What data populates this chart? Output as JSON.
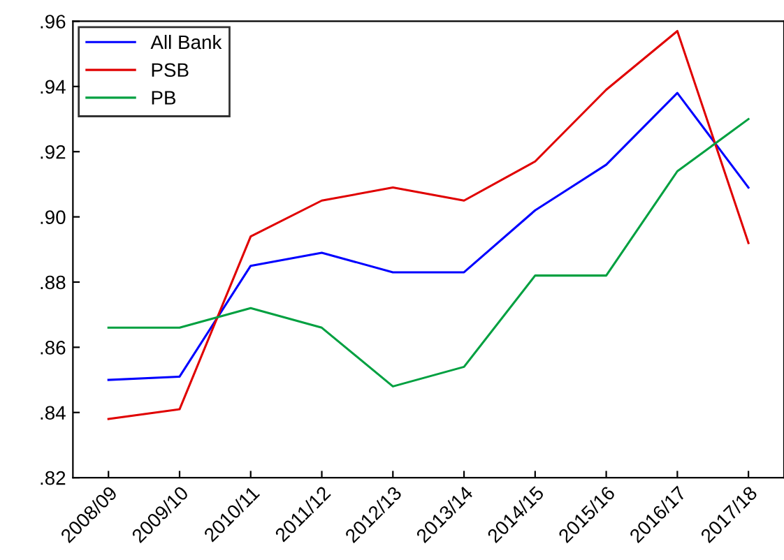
{
  "chart_data": {
    "type": "line",
    "categories": [
      "2008/09",
      "2009/10",
      "2010/11",
      "2011/12",
      "2012/13",
      "2013/14",
      "2014/15",
      "2015/16",
      "2016/17",
      "2017/18"
    ],
    "series": [
      {
        "name": "All Bank",
        "color": "#0000ff",
        "values": [
          0.85,
          0.851,
          0.885,
          0.889,
          0.883,
          0.883,
          0.902,
          0.916,
          0.938,
          0.909
        ]
      },
      {
        "name": "PSB",
        "color": "#e00000",
        "values": [
          0.838,
          0.841,
          0.894,
          0.905,
          0.909,
          0.905,
          0.917,
          0.939,
          0.957,
          0.892
        ]
      },
      {
        "name": "PB",
        "color": "#00a040",
        "values": [
          0.866,
          0.866,
          0.872,
          0.866,
          0.848,
          0.854,
          0.882,
          0.882,
          0.914,
          0.93
        ]
      }
    ],
    "ylim": [
      0.82,
      0.96
    ],
    "yticks": [
      {
        "value": 0.82,
        "label": ".82"
      },
      {
        "value": 0.84,
        "label": ".84"
      },
      {
        "value": 0.86,
        "label": ".86"
      },
      {
        "value": 0.88,
        "label": ".88"
      },
      {
        "value": 0.9,
        "label": ".90"
      },
      {
        "value": 0.92,
        "label": ".92"
      },
      {
        "value": 0.94,
        "label": ".94"
      },
      {
        "value": 0.96,
        "label": ".96"
      }
    ],
    "grid": false,
    "legend": "top left",
    "marker": "none",
    "line_style": "solid"
  }
}
